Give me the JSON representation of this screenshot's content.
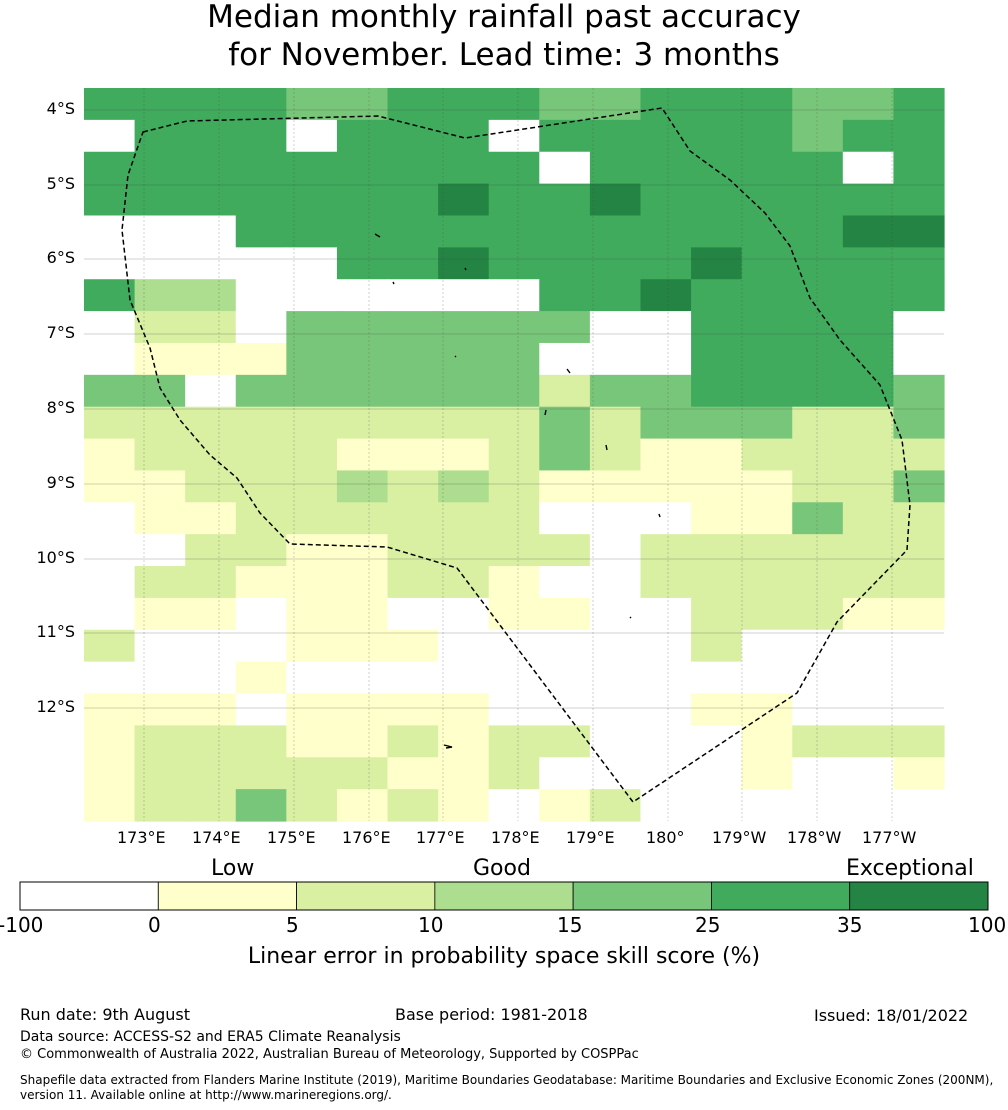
{
  "title": {
    "line1": "Median monthly rainfall past accuracy",
    "line2": "for November. Lead time: 3 months"
  },
  "map": {
    "lat_labels": [
      "4°S",
      "5°S",
      "6°S",
      "7°S",
      "8°S",
      "9°S",
      "10°S",
      "11°S",
      "12°S"
    ],
    "lon_labels": [
      "173°E",
      "174°E",
      "175°E",
      "176°E",
      "177°E",
      "178°E",
      "179°E",
      "180°",
      "179°W",
      "178°W",
      "177°W"
    ],
    "grid_value_classes": [
      "G G G G H H G G G H H G G G H H G",
      "I G G G I G G G I G G G G G H G G",
      "G G G G G G G G G I G G G G G I G",
      "G G G G G G G S G G S G G G G G G",
      "I I I G G G G G G G G G G G G S S",
      "I I I I I G G S G G G G S G G G G",
      "G L L I I I I I I G G S G G G G G",
      "J K K J H H H H H H I I G G G G I",
      "J C C C H H H H H I I I G G G G I",
      "H H J H H H H H H K H H G G G G H",
      "K K K K K K K K K H K H H H K K H",
      "C K K K K C C C K H K C C K K K K",
      "C C K K K L K L K C C C C C K K H",
      "W C C K K K K K K W W W C C H K K",
      "W W K K C C K K K K W K K K K K K",
      "W K K C C C K K C W W K K K K K K",
      "W C C W C C W W C C W W K K K C C",
      "K W W W C C C W W W W W K W W W W",
      "W W W C W W W W W W W W W W W W W",
      "C C C W C C C C W W W W C C W W W",
      "C K K K C C K C K K W W W C K K K",
      "C K K K K K C C K W W W W C W W C",
      "C K K H K C K C W C K W W W W W W"
    ],
    "legend_colors": {
      "W": "#ffffff",
      "C": "#ffffcc",
      "K": "#d9f0a3",
      "L": "#addd8e",
      "H": "#78c679",
      "G": "#41ab5d",
      "S": "#238443"
    }
  },
  "colorbar": {
    "category_labels": [
      "Low",
      "Good",
      "Exceptional"
    ],
    "tick_labels": [
      "-100",
      "0",
      "5",
      "10",
      "15",
      "25",
      "35",
      "100"
    ],
    "colors": [
      "#ffffff",
      "#ffffcc",
      "#d9f0a3",
      "#addd8e",
      "#78c679",
      "#41ab5d",
      "#238443"
    ],
    "title": "Linear error in probability space skill score (%)"
  },
  "footer": {
    "run_date": "Run date: 9th August",
    "base_period": "Base period: 1981-2018",
    "issued": "Issued: 18/01/2022",
    "data_source": "Data source: ACCESS-S2 and ERA5 Climate Reanalysis",
    "copyright": "© Commonwealth of Australia 2022, Australian Bureau of Meteorology, Supported by COSPPac",
    "shapefile_line1": "Shapefile data extracted from Flanders Marine Institute (2019), Maritime Boundaries Geodatabase: Maritime Boundaries and Exclusive Economic Zones (200NM),",
    "shapefile_line2": "version 11. Available online at http://www.marineregions.org/."
  }
}
